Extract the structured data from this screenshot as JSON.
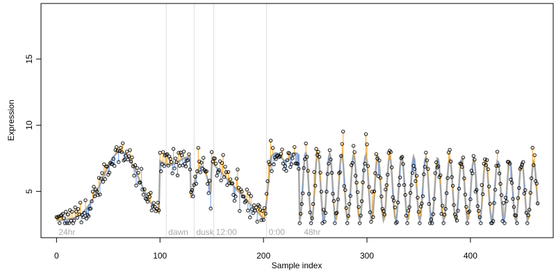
{
  "chart_data": {
    "type": "scatter",
    "xlabel": "Sample index",
    "ylabel": "Expression",
    "xlim": [
      -15,
      480
    ],
    "ylim": [
      1.5,
      19.2
    ],
    "x_ticks": [
      0,
      100,
      200,
      300,
      400
    ],
    "y_ticks": [
      5,
      10,
      15
    ],
    "grid": false,
    "colors": {
      "fitted_line": "#a6a6a6",
      "residual_above": "#f5a623",
      "residual_below": "#6f9ae0",
      "points": "#000000",
      "marker_lines": "#dddddd",
      "marker_labels": "#aaaaaa"
    },
    "time_markers": [
      {
        "x": 0,
        "label": "24hr",
        "line": false
      },
      {
        "x": 106,
        "label": "dawn",
        "line": true
      },
      {
        "x": 133,
        "label": "dusk",
        "line": true
      },
      {
        "x": 152,
        "label": "12:00",
        "line": true
      },
      {
        "x": 203,
        "label": "0:00",
        "line": true
      },
      {
        "x": 237,
        "label": "48hr",
        "line": false
      }
    ],
    "segments": [
      {
        "x_start": 0,
        "x_end": 100,
        "base": 2.8,
        "peak": 8.0,
        "peak_x": 62,
        "width": 25,
        "noise": 0.8
      },
      {
        "x_start": 100,
        "x_end": 202,
        "base": 3.0,
        "plateau": 7.3,
        "noise": 1.0
      },
      {
        "x_start": 202,
        "x_end": 235,
        "base": 7.6,
        "noise": 0.9
      },
      {
        "x_start": 235,
        "x_end": 465,
        "base": 2.8,
        "amplitude": 5.2,
        "period": 11.6,
        "noise": 0.9
      }
    ],
    "n_points": 466
  }
}
